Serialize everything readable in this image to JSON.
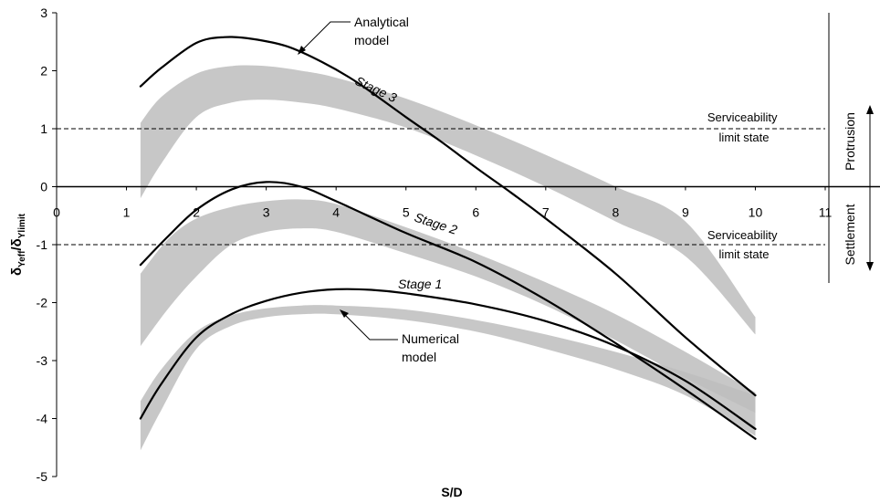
{
  "chart_data": {
    "type": "line",
    "title": "",
    "xlabel": "S/D",
    "ylabel": {
      "main": "δ",
      "num_sub": "Yeff",
      "slash": "/",
      "den_main": "δ",
      "den_sub": "Ylimit"
    },
    "xlim": [
      0,
      11
    ],
    "ylim": [
      -5,
      3
    ],
    "x_ticks": [
      "0",
      "1",
      "2",
      "3",
      "4",
      "5",
      "6",
      "7",
      "8",
      "9",
      "10",
      "11"
    ],
    "y_ticks": [
      "3",
      "2",
      "1",
      "0",
      "-1",
      "-2",
      "-3",
      "-4",
      "-5"
    ],
    "grid": false,
    "analytical_curves": [
      {
        "name": "Stage 3",
        "color": "#000000",
        "x": [
          1.2,
          1.5,
          2.0,
          2.4,
          2.8,
          3.3,
          3.8,
          4.3,
          5.0,
          5.5,
          6.0,
          6.5,
          7.0,
          8.0,
          9.0,
          10.0
        ],
        "y": [
          1.73,
          2.05,
          2.48,
          2.58,
          2.55,
          2.42,
          2.15,
          1.8,
          1.2,
          0.78,
          0.33,
          -0.1,
          -0.55,
          -1.5,
          -2.6,
          -3.6
        ]
      },
      {
        "name": "Stage 2",
        "color": "#000000",
        "x": [
          1.2,
          1.6,
          2.0,
          2.5,
          3.0,
          3.5,
          4.0,
          5.0,
          6.0,
          7.0,
          8.0,
          9.0,
          10.0
        ],
        "y": [
          -1.35,
          -0.85,
          -0.4,
          -0.05,
          0.08,
          0.0,
          -0.25,
          -0.8,
          -1.3,
          -1.95,
          -2.7,
          -3.5,
          -4.35
        ]
      },
      {
        "name": "Stage 1",
        "color": "#000000",
        "x": [
          1.2,
          1.5,
          2.0,
          2.5,
          3.0,
          3.5,
          4.0,
          4.5,
          5.0,
          6.0,
          7.0,
          8.0,
          9.0,
          10.0
        ],
        "y": [
          -4.0,
          -3.4,
          -2.6,
          -2.2,
          -1.97,
          -1.83,
          -1.77,
          -1.78,
          -1.84,
          -2.03,
          -2.32,
          -2.75,
          -3.35,
          -4.18
        ]
      }
    ],
    "numerical_bands": [
      {
        "name": "Stage 3",
        "color": "#bdbdbd",
        "x": [
          1.2,
          1.5,
          2.0,
          2.5,
          3.0,
          3.5,
          4.0,
          5.0,
          6.0,
          7.0,
          8.0,
          9.0,
          10.0
        ],
        "upper": [
          1.1,
          1.55,
          1.95,
          2.08,
          2.08,
          2.0,
          1.88,
          1.52,
          1.06,
          0.55,
          0.0,
          -0.6,
          -2.25
        ],
        "lower": [
          -0.2,
          0.4,
          1.2,
          1.45,
          1.5,
          1.45,
          1.35,
          1.02,
          0.54,
          -0.0,
          -0.6,
          -1.2,
          -2.55
        ]
      },
      {
        "name": "Stage 2",
        "color": "#bdbdbd",
        "x": [
          1.2,
          1.6,
          2.0,
          2.5,
          3.0,
          3.5,
          4.0,
          5.0,
          6.0,
          7.0,
          8.0,
          9.0,
          10.0
        ],
        "upper": [
          -1.5,
          -0.9,
          -0.55,
          -0.35,
          -0.25,
          -0.22,
          -0.3,
          -0.7,
          -1.15,
          -1.65,
          -2.2,
          -2.85,
          -3.55
        ],
        "lower": [
          -2.75,
          -2.1,
          -1.55,
          -1.0,
          -0.78,
          -0.72,
          -0.78,
          -1.15,
          -1.55,
          -2.05,
          -2.65,
          -3.3,
          -3.9
        ]
      },
      {
        "name": "Stage 1",
        "color": "#bdbdbd",
        "x": [
          1.2,
          1.5,
          2.0,
          2.5,
          3.0,
          3.5,
          4.0,
          5.0,
          6.0,
          7.0,
          8.0,
          9.0,
          10.0
        ],
        "upper": [
          -3.7,
          -3.15,
          -2.5,
          -2.22,
          -2.1,
          -2.05,
          -2.05,
          -2.12,
          -2.3,
          -2.55,
          -2.85,
          -3.2,
          -3.6
        ],
        "lower": [
          -4.55,
          -3.85,
          -2.8,
          -2.4,
          -2.25,
          -2.2,
          -2.2,
          -2.3,
          -2.5,
          -2.8,
          -3.15,
          -3.6,
          -4.3
        ]
      }
    ],
    "reference_lines": [
      {
        "y": 1,
        "style": "dashed"
      },
      {
        "y": -1,
        "style": "dashed"
      }
    ],
    "annotations": {
      "analytical": [
        "Analytical",
        "model"
      ],
      "numerical": [
        "Numerical",
        "model"
      ],
      "stage3": "Stage 3",
      "stage2": "Stage 2",
      "stage1": "Stage 1",
      "sls_upper": [
        "Serviceability",
        "limit state"
      ],
      "sls_lower": [
        "Serviceability",
        "limit state"
      ],
      "protrusion": "Protrusion",
      "settlement": "Settlement"
    }
  }
}
